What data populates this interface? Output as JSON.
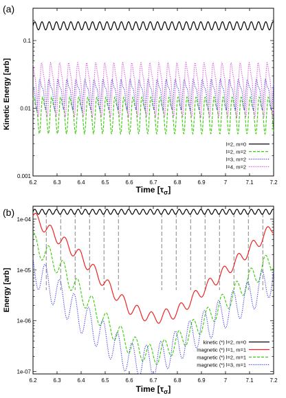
{
  "chart_data": [
    {
      "type": "line",
      "panel_label": "(a)",
      "xlabel_prefix": "Time",
      "xlabel_symbol": "τ",
      "xlabel_sub": "σ",
      "ylabel": "Kinetic Energy [arb]",
      "y_scale": "log",
      "xlim": [
        6.2,
        7.2
      ],
      "ylim": [
        0.001,
        0.3
      ],
      "x_ticks": [
        "6.2",
        "6.3",
        "6.4",
        "6.5",
        "6.6",
        "6.7",
        "6.8",
        "6.9",
        "7",
        "7.1",
        "7.2"
      ],
      "y_ticks": [
        {
          "value": 0.001,
          "label": "0.001"
        },
        {
          "value": 0.01,
          "label": "0.01"
        },
        {
          "value": 0.1,
          "label": "0.1"
        }
      ],
      "legend_position": "bottom-right",
      "series": [
        {
          "name": "l=2, m=0",
          "color": "#000000",
          "dash": "solid",
          "center": 0.165,
          "amp": 0.06,
          "period": 0.03,
          "harm": 0,
          "phase": 0.0
        },
        {
          "name": "l=2, m=2",
          "color": "#33cc00",
          "dash": "dashed",
          "center": 0.0085,
          "amp": 0.32,
          "period": 0.0375,
          "harm": 0.35,
          "phase": 0.5
        },
        {
          "name": "l=3, m=2",
          "color": "#3333ee",
          "dash": "dotted",
          "center": 0.017,
          "amp": 0.27,
          "period": 0.0375,
          "harm": 0.4,
          "phase": 2.4
        },
        {
          "name": "l=4, m=2",
          "color": "#dd44dd",
          "dash": "dotted",
          "center": 0.021,
          "amp": 0.47,
          "period": 0.0375,
          "harm": 0.3,
          "phase": 1.3
        }
      ]
    },
    {
      "type": "line",
      "panel_label": "(b)",
      "xlabel_prefix": "Time",
      "xlabel_symbol": "τ",
      "xlabel_sub": "σ",
      "ylabel": "Energy [arb]",
      "y_scale": "log",
      "xlim": [
        6.2,
        7.2
      ],
      "ylim": [
        9e-08,
        0.00018
      ],
      "x_ticks": [
        "6.2",
        "6.3",
        "6.4",
        "6.5",
        "6.6",
        "6.7",
        "6.8",
        "6.9",
        "7",
        "7.1",
        "7.2"
      ],
      "y_ticks": [
        {
          "value": 1e-07,
          "label": "1e-07"
        },
        {
          "value": 1e-06,
          "label": "1e-06"
        },
        {
          "value": 1e-05,
          "label": "1e-05"
        },
        {
          "value": 0.0001,
          "label": "1e-04"
        }
      ],
      "vlines": [
        6.255,
        6.315,
        6.375,
        6.435,
        6.495,
        6.555,
        6.735,
        6.795,
        6.855,
        6.915,
        6.975,
        7.035,
        7.095,
        7.155
      ],
      "legend_position": "bottom-right",
      "series": [
        {
          "name": "kinetic (*) l=2, m=0",
          "color": "#000000",
          "dash": "solid",
          "const": 0.00014,
          "amp": 0.05,
          "period": 0.03,
          "phase": 0.0
        },
        {
          "name": "magnetic (*) l=1, m=1",
          "color": "#ee2222",
          "dash": "solid",
          "trend": [
            [
              6.2,
              0.00011
            ],
            [
              6.3,
              4.5e-05
            ],
            [
              6.4,
              1.8e-05
            ],
            [
              6.5,
              5.5e-06
            ],
            [
              6.6,
              1.8e-06
            ],
            [
              6.7,
              1.1e-06
            ],
            [
              6.8,
              1.5e-06
            ],
            [
              6.9,
              3.8e-06
            ],
            [
              7.0,
              9.5e-06
            ],
            [
              7.1,
              2.5e-05
            ],
            [
              7.2,
              7e-05
            ]
          ],
          "amp": 0.12,
          "period": 0.06,
          "phase": 0.2
        },
        {
          "name": "magnetic (*) l=2, m=1",
          "color": "#33cc00",
          "dash": "dashed",
          "trend": [
            [
              6.2,
              3.5e-05
            ],
            [
              6.3,
              1.35e-05
            ],
            [
              6.4,
              3.5e-06
            ],
            [
              6.5,
              9.5e-07
            ],
            [
              6.6,
              3.5e-07
            ],
            [
              6.7,
              2e-07
            ],
            [
              6.8,
              3.8e-07
            ],
            [
              6.9,
              9e-07
            ],
            [
              7.0,
              2.4e-06
            ],
            [
              7.1,
              6.5e-06
            ],
            [
              7.2,
              1.7e-05
            ]
          ],
          "amp": 0.2,
          "period": 0.06,
          "phase": 1.0
        },
        {
          "name": "magnetic (*) l=3, m=1",
          "color": "#3333ee",
          "dash": "dotted",
          "trend": [
            [
              6.2,
              1.1e-05
            ],
            [
              6.3,
              3.5e-06
            ],
            [
              6.4,
              1.2e-06
            ],
            [
              6.5,
              4.5e-07
            ],
            [
              6.6,
              1.8e-07
            ],
            [
              6.7,
              1.5e-07
            ],
            [
              6.8,
              3.2e-07
            ],
            [
              6.9,
              7e-07
            ],
            [
              7.0,
              1.5e-06
            ],
            [
              7.1,
              3e-06
            ],
            [
              7.2,
              7e-06
            ]
          ],
          "amp": 0.32,
          "period": 0.06,
          "phase": 2.5
        }
      ]
    }
  ]
}
